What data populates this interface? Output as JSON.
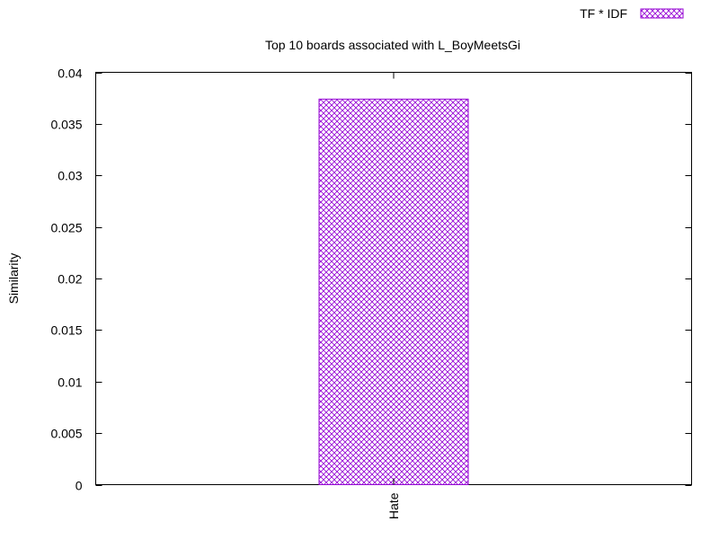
{
  "chart_data": {
    "type": "bar",
    "title": "Top 10 boards associated with L_BoyMeetsGi",
    "xlabel": "",
    "ylabel": "Similarity",
    "categories": [
      "Hate"
    ],
    "series": [
      {
        "name": "TF * IDF",
        "values": [
          0.0374
        ]
      }
    ],
    "ylim": [
      0,
      0.04
    ],
    "yticks": [
      "0",
      "0.005",
      "0.01",
      "0.015",
      "0.02",
      "0.025",
      "0.03",
      "0.035",
      "0.04"
    ],
    "grid": false,
    "legend_position": "top-right",
    "bar_color": "#9400d3",
    "bar_pattern": "crosshatch"
  }
}
